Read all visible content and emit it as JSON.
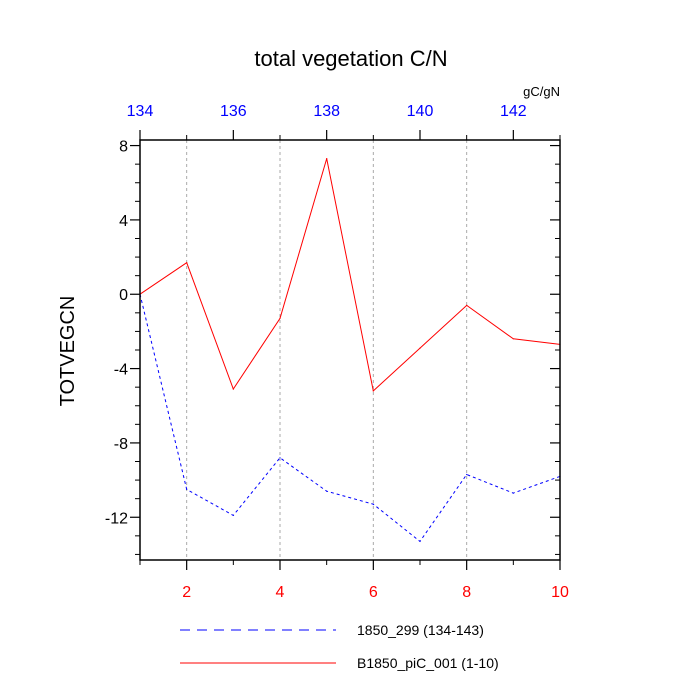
{
  "chart_data": {
    "type": "line",
    "title": "total vegetation C/N",
    "units": "gC/gN",
    "ylabel": "TOTVEGCN",
    "xlabel": "",
    "ylim": [
      -14.3,
      8.3
    ],
    "yticks": [
      8,
      4,
      0,
      -4,
      -8,
      -12
    ],
    "bottom_axis": {
      "range": [
        1,
        10
      ],
      "ticks": [
        2,
        4,
        6,
        8,
        10
      ],
      "color": "#ff0000"
    },
    "top_axis": {
      "range": [
        134,
        143
      ],
      "ticks": [
        134,
        136,
        138,
        140,
        142
      ],
      "color": "#0000ff"
    },
    "grid": "vertical-dashed",
    "legend_position": "bottom",
    "series": [
      {
        "name": "1850_299 (134-143)",
        "color": "#0000ff",
        "dash": "dashed",
        "axis": "top",
        "x": [
          134,
          135,
          136,
          137,
          138,
          139,
          140,
          141,
          142,
          143
        ],
        "values": [
          0.0,
          -10.5,
          -11.9,
          -8.8,
          -10.6,
          -11.3,
          -13.3,
          -9.7,
          -10.7,
          -9.8
        ]
      },
      {
        "name": "B1850_piC_001 (1-10)",
        "color": "#ff0000",
        "dash": "solid",
        "axis": "bottom",
        "x": [
          1,
          2,
          3,
          4,
          5,
          6,
          7,
          8,
          9,
          10
        ],
        "values": [
          0.0,
          1.7,
          -5.1,
          -1.3,
          7.3,
          -5.2,
          -2.9,
          -0.6,
          -2.4,
          -2.7
        ]
      }
    ]
  }
}
